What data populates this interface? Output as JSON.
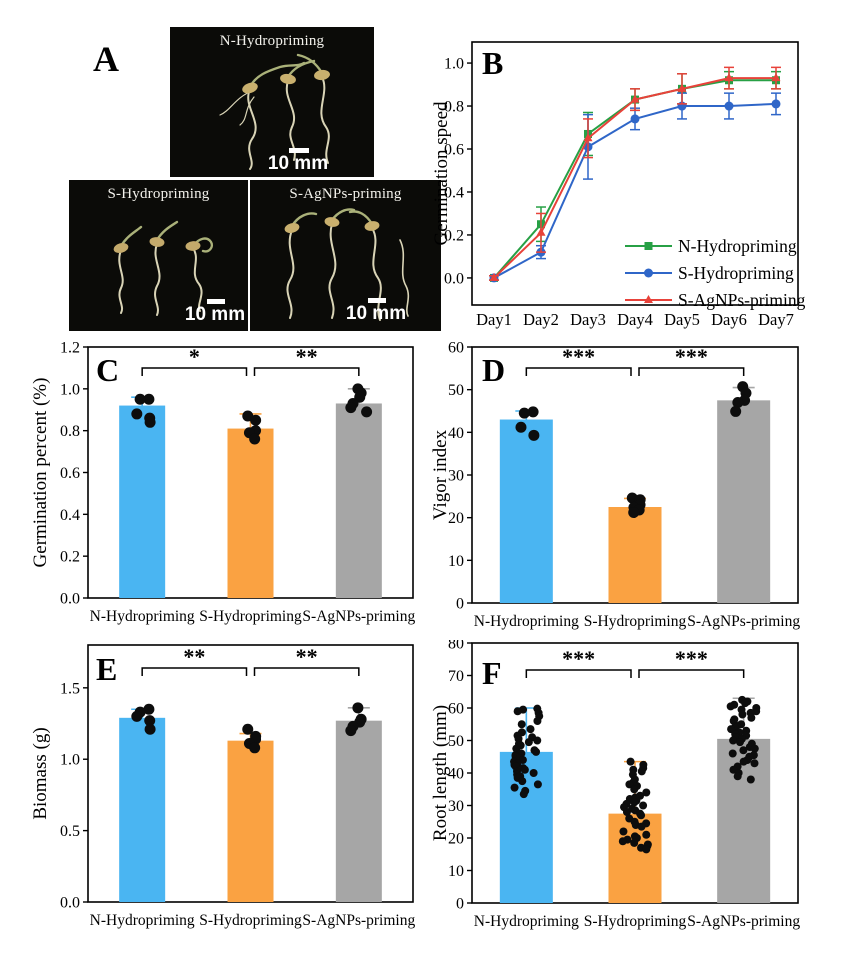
{
  "figure": {
    "panel_a": {
      "label": "A",
      "photos": [
        {
          "title": "N-Hydropriming",
          "scale_label": "10 mm"
        },
        {
          "title": "S-Hydropriming",
          "scale_label": "10 mm"
        },
        {
          "title": "S-AgNPs-priming",
          "scale_label": "10 mm"
        }
      ]
    },
    "colors": {
      "bar_blue": "#4ab5f2",
      "bar_orange": "#faa242",
      "bar_gray": "#a6a6a6",
      "line_green": "#27a045",
      "line_blue": "#2f66c8",
      "line_red": "#e8423a",
      "point_black": "#0d0d0d",
      "axis_black": "#000000"
    }
  },
  "chart_data": [
    {
      "panel": "B",
      "type": "line",
      "ylabel": "Germination speed",
      "x": [
        "Day1",
        "Day2",
        "Day3",
        "Day4",
        "Day5",
        "Day6",
        "Day7"
      ],
      "ylim": [
        -0.126,
        1.098
      ],
      "yticks": [
        0.0,
        0.2,
        0.4,
        0.6,
        0.8,
        1.0
      ],
      "ytick_decimals": 1,
      "grid": false,
      "legend_position": "bottom-right",
      "series": [
        {
          "name": "N-Hydropriming",
          "color": "#27a045",
          "marker": "square",
          "values": [
            0.0,
            0.25,
            0.67,
            0.83,
            0.88,
            0.92,
            0.92
          ],
          "errors": [
            0.01,
            0.08,
            0.1,
            0.05,
            0.07,
            0.04,
            0.04
          ]
        },
        {
          "name": "S-Hydropriming",
          "color": "#2f66c8",
          "marker": "circle",
          "values": [
            0.0,
            0.12,
            0.61,
            0.74,
            0.8,
            0.8,
            0.81
          ],
          "errors": [
            0.01,
            0.03,
            0.15,
            0.05,
            0.06,
            0.06,
            0.05
          ]
        },
        {
          "name": "S-AgNPs-priming",
          "color": "#e8423a",
          "marker": "triangle",
          "values": [
            0.0,
            0.21,
            0.65,
            0.83,
            0.88,
            0.93,
            0.93
          ],
          "errors": [
            0.01,
            0.09,
            0.09,
            0.05,
            0.07,
            0.05,
            0.05
          ]
        }
      ]
    },
    {
      "panel": "C",
      "type": "bar",
      "ylabel": "Germination percent (%)",
      "categories": [
        "N-Hydropriming",
        "S-Hydropriming",
        "S-AgNPs-priming"
      ],
      "values": [
        0.92,
        0.81,
        0.93
      ],
      "errors": [
        0.04,
        0.07,
        0.07
      ],
      "bar_colors": [
        "#4ab5f2",
        "#faa242",
        "#a6a6a6"
      ],
      "ylim": [
        0,
        1.2
      ],
      "yticks": [
        0.0,
        0.2,
        0.4,
        0.6,
        0.8,
        1.0,
        1.2
      ],
      "ytick_decimals": 1,
      "grid": false,
      "significance": [
        {
          "from": 0,
          "to": 1,
          "label": "*"
        },
        {
          "from": 1,
          "to": 2,
          "label": "**"
        }
      ],
      "points": [
        [
          0.95,
          0.95,
          0.88,
          0.86,
          0.84
        ],
        [
          0.87,
          0.85,
          0.8,
          0.79,
          0.76
        ],
        [
          1.0,
          0.98,
          0.96,
          0.93,
          0.91,
          0.89
        ]
      ]
    },
    {
      "panel": "D",
      "type": "bar",
      "ylabel": "Vigor index",
      "categories": [
        "N-Hydropriming",
        "S-Hydropriming",
        "S-AgNPs-priming"
      ],
      "values": [
        43,
        22.5,
        47.5
      ],
      "errors": [
        2,
        2,
        3
      ],
      "bar_colors": [
        "#4ab5f2",
        "#faa242",
        "#a6a6a6"
      ],
      "ylim": [
        0,
        60
      ],
      "yticks": [
        0,
        10,
        20,
        30,
        40,
        50,
        60
      ],
      "ytick_decimals": 0,
      "grid": false,
      "significance": [
        {
          "from": 0,
          "to": 1,
          "label": "***"
        },
        {
          "from": 1,
          "to": 2,
          "label": "***"
        }
      ],
      "points": [
        [
          44.8,
          44.5,
          41.2,
          39.3
        ],
        [
          24.6,
          24.2,
          23.0,
          22.4,
          21.8,
          21.2
        ],
        [
          50.7,
          49.2,
          47.5,
          47.0,
          44.9
        ]
      ]
    },
    {
      "panel": "E",
      "type": "bar",
      "ylabel": "Biomass (g)",
      "categories": [
        "N-Hydropriming",
        "S-Hydropriming",
        "S-AgNPs-priming"
      ],
      "values": [
        1.29,
        1.13,
        1.27
      ],
      "errors": [
        0.06,
        0.05,
        0.09
      ],
      "bar_colors": [
        "#4ab5f2",
        "#faa242",
        "#a6a6a6"
      ],
      "ylim": [
        0,
        1.8
      ],
      "yticks": [
        0.0,
        0.5,
        1.0,
        1.5
      ],
      "ytick_decimals": 1,
      "grid": false,
      "significance": [
        {
          "from": 0,
          "to": 1,
          "label": "**"
        },
        {
          "from": 1,
          "to": 2,
          "label": "**"
        }
      ],
      "points": [
        [
          1.35,
          1.33,
          1.3,
          1.27,
          1.21
        ],
        [
          1.21,
          1.16,
          1.14,
          1.11,
          1.08
        ],
        [
          1.36,
          1.28,
          1.26,
          1.23,
          1.2
        ]
      ]
    },
    {
      "panel": "F",
      "type": "bar",
      "ylabel": "Root length (mm)",
      "categories": [
        "N-Hydropriming",
        "S-Hydropriming",
        "S-AgNPs-priming"
      ],
      "values": [
        46.5,
        27.5,
        50.5
      ],
      "errors": [
        13.5,
        16,
        12.5
      ],
      "bar_colors": [
        "#4ab5f2",
        "#faa242",
        "#a6a6a6"
      ],
      "ylim": [
        0,
        80
      ],
      "yticks": [
        0,
        10,
        20,
        30,
        40,
        50,
        60,
        70,
        80
      ],
      "ytick_decimals": 0,
      "grid": false,
      "significance": [
        {
          "from": 0,
          "to": 1,
          "label": "***"
        },
        {
          "from": 1,
          "to": 2,
          "label": "***"
        }
      ],
      "points": [
        [
          59.8,
          59.5,
          59.0,
          58.5,
          57.5,
          56.0,
          55.0,
          53.5,
          52.5,
          51.5,
          51.0,
          50.5,
          50.0,
          49.5,
          49.0,
          48.5,
          47.5,
          47.0,
          46.5,
          46.0,
          45.5,
          45.0,
          44.5,
          44.0,
          43.5,
          43.0,
          42.5,
          42.0,
          41.5,
          41.0,
          40.5,
          40.0,
          39.5,
          39.0,
          38.5,
          37.5,
          36.5,
          35.5,
          34.5,
          33.5
        ],
        [
          43.5,
          42.5,
          41.5,
          41.0,
          40.5,
          39.5,
          38.0,
          37.0,
          36.5,
          36.0,
          35.0,
          34.0,
          33.0,
          32.5,
          32.0,
          31.5,
          31.0,
          30.5,
          30.0,
          29.5,
          29.0,
          28.5,
          28.0,
          27.5,
          27.0,
          26.0,
          25.0,
          24.5,
          24.0,
          23.5,
          22.0,
          21.0,
          20.5,
          20.0,
          19.5,
          19.0,
          18.5,
          18.0,
          17.5,
          17.0,
          16.5
        ],
        [
          62.5,
          62.0,
          61.5,
          61.0,
          60.5,
          60.0,
          59.5,
          59.0,
          58.5,
          58.0,
          57.0,
          56.5,
          56.0,
          55.0,
          54.5,
          54.0,
          53.5,
          53.0,
          52.5,
          52.0,
          51.5,
          51.0,
          50.5,
          50.0,
          49.5,
          49.0,
          48.0,
          47.5,
          47.0,
          46.0,
          45.5,
          45.0,
          44.0,
          43.5,
          43.0,
          42.0,
          41.0,
          40.0,
          39.0,
          38.0
        ]
      ]
    }
  ]
}
